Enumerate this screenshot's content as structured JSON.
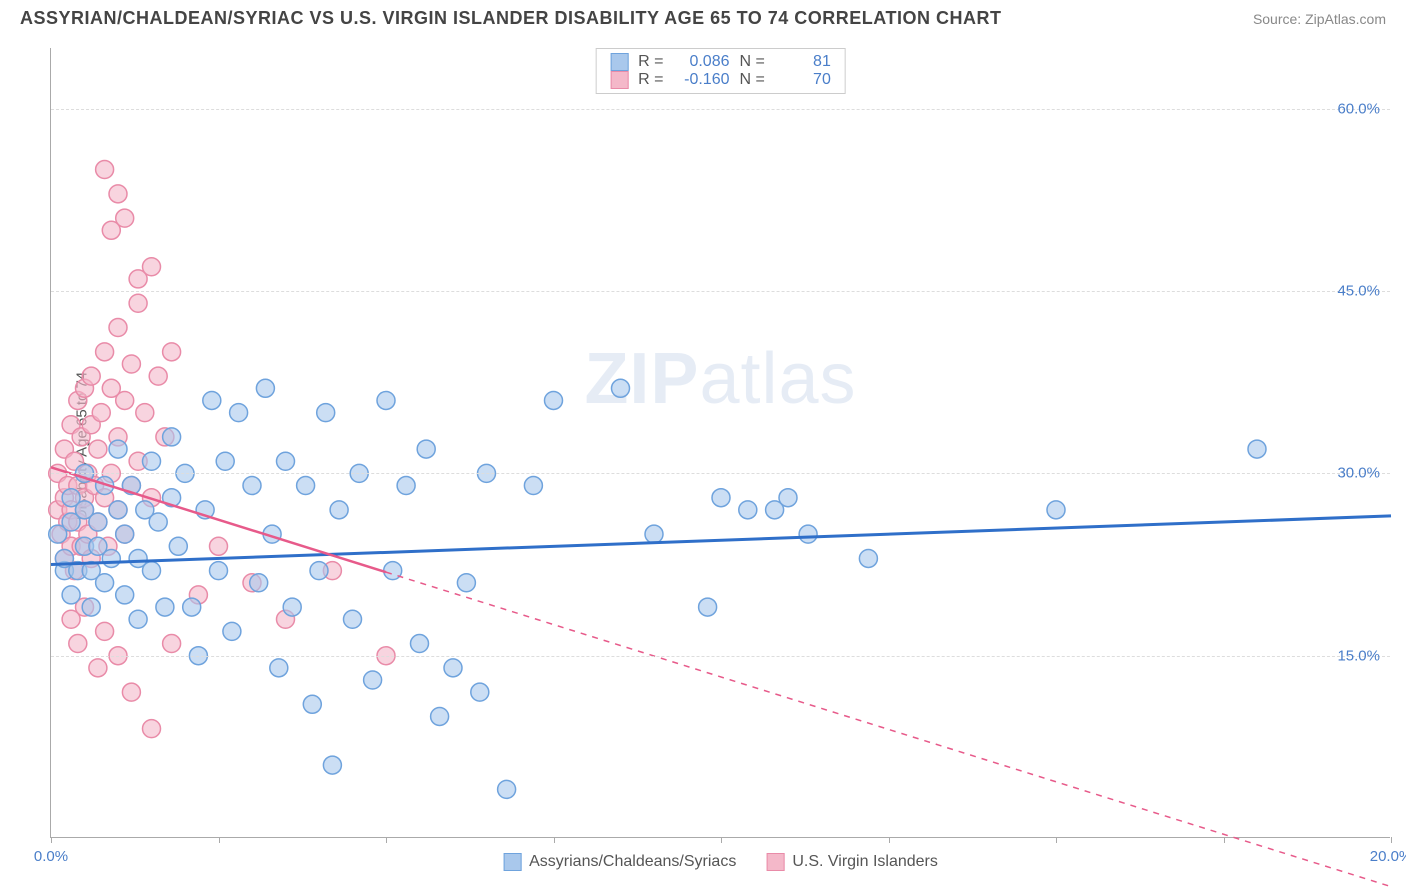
{
  "title": "ASSYRIAN/CHALDEAN/SYRIAC VS U.S. VIRGIN ISLANDER DISABILITY AGE 65 TO 74 CORRELATION CHART",
  "source": "Source: ZipAtlas.com",
  "ylabel": "Disability Age 65 to 74",
  "watermark": {
    "bold": "ZIP",
    "light": "atlas"
  },
  "chart": {
    "type": "scatter",
    "xlim": [
      0,
      20
    ],
    "ylim": [
      0,
      65
    ],
    "xticks": [
      0,
      2.5,
      5,
      7.5,
      10,
      12.5,
      15,
      17.5,
      20
    ],
    "xtick_labels": {
      "0": "0.0%",
      "20": "20.0%"
    },
    "yticks": [
      15,
      30,
      45,
      60
    ],
    "ytick_format": "%.1f%%",
    "grid_color": "#dddddd",
    "axis_color": "#aaaaaa",
    "background_color": "#ffffff",
    "series": [
      {
        "name": "Assyrians/Chaldeans/Syriacs",
        "color_fill": "#a9c8ec",
        "color_stroke": "#6fa3dd",
        "marker_radius": 9,
        "fill_opacity": 0.6,
        "R": "0.086",
        "N": "81",
        "trend": {
          "y_at_x0": 22.5,
          "y_at_x20": 26.5,
          "color": "#2f6fc9",
          "width": 3,
          "solid_until_x": 20
        },
        "points": [
          [
            0.1,
            25
          ],
          [
            0.2,
            22
          ],
          [
            0.2,
            23
          ],
          [
            0.3,
            26
          ],
          [
            0.3,
            20
          ],
          [
            0.3,
            28
          ],
          [
            0.4,
            22
          ],
          [
            0.5,
            24
          ],
          [
            0.5,
            27
          ],
          [
            0.5,
            30
          ],
          [
            0.6,
            19
          ],
          [
            0.6,
            22
          ],
          [
            0.7,
            26
          ],
          [
            0.7,
            24
          ],
          [
            0.8,
            29
          ],
          [
            0.8,
            21
          ],
          [
            0.9,
            23
          ],
          [
            1.0,
            27
          ],
          [
            1.0,
            32
          ],
          [
            1.1,
            20
          ],
          [
            1.1,
            25
          ],
          [
            1.2,
            29
          ],
          [
            1.3,
            18
          ],
          [
            1.3,
            23
          ],
          [
            1.4,
            27
          ],
          [
            1.5,
            31
          ],
          [
            1.5,
            22
          ],
          [
            1.6,
            26
          ],
          [
            1.7,
            19
          ],
          [
            1.8,
            33
          ],
          [
            1.8,
            28
          ],
          [
            1.9,
            24
          ],
          [
            2.0,
            30
          ],
          [
            2.1,
            19
          ],
          [
            2.2,
            15
          ],
          [
            2.3,
            27
          ],
          [
            2.4,
            36
          ],
          [
            2.5,
            22
          ],
          [
            2.6,
            31
          ],
          [
            2.7,
            17
          ],
          [
            2.8,
            35
          ],
          [
            3.0,
            29
          ],
          [
            3.1,
            21
          ],
          [
            3.2,
            37
          ],
          [
            3.3,
            25
          ],
          [
            3.4,
            14
          ],
          [
            3.5,
            31
          ],
          [
            3.6,
            19
          ],
          [
            3.8,
            29
          ],
          [
            3.9,
            11
          ],
          [
            4.0,
            22
          ],
          [
            4.1,
            35
          ],
          [
            4.3,
            27
          ],
          [
            4.5,
            18
          ],
          [
            4.6,
            30
          ],
          [
            4.8,
            13
          ],
          [
            5.0,
            36
          ],
          [
            5.1,
            22
          ],
          [
            5.3,
            29
          ],
          [
            5.5,
            16
          ],
          [
            5.6,
            32
          ],
          [
            5.8,
            10
          ],
          [
            6.0,
            14
          ],
          [
            6.2,
            21
          ],
          [
            6.4,
            12
          ],
          [
            6.5,
            30
          ],
          [
            6.8,
            4
          ],
          [
            7.2,
            29
          ],
          [
            7.5,
            36
          ],
          [
            8.5,
            37
          ],
          [
            9.0,
            25
          ],
          [
            9.8,
            19
          ],
          [
            10.0,
            28
          ],
          [
            10.4,
            27
          ],
          [
            10.8,
            27
          ],
          [
            11.0,
            28
          ],
          [
            11.3,
            25
          ],
          [
            12.2,
            23
          ],
          [
            15.0,
            27
          ],
          [
            18.0,
            32
          ],
          [
            4.2,
            6
          ]
        ]
      },
      {
        "name": "U.S. Virgin Islanders",
        "color_fill": "#f4b8c9",
        "color_stroke": "#e98ba8",
        "marker_radius": 9,
        "fill_opacity": 0.6,
        "R": "-0.160",
        "N": "70",
        "trend": {
          "y_at_x0": 30.5,
          "y_at_x20": -4.0,
          "color": "#e75a8a",
          "width": 2.5,
          "solid_until_x": 5
        },
        "points": [
          [
            0.1,
            27
          ],
          [
            0.1,
            30
          ],
          [
            0.15,
            25
          ],
          [
            0.2,
            28
          ],
          [
            0.2,
            32
          ],
          [
            0.2,
            23
          ],
          [
            0.25,
            26
          ],
          [
            0.25,
            29
          ],
          [
            0.3,
            34
          ],
          [
            0.3,
            24
          ],
          [
            0.3,
            27
          ],
          [
            0.35,
            31
          ],
          [
            0.35,
            22
          ],
          [
            0.4,
            36
          ],
          [
            0.4,
            26
          ],
          [
            0.4,
            29
          ],
          [
            0.45,
            24
          ],
          [
            0.45,
            33
          ],
          [
            0.5,
            28
          ],
          [
            0.5,
            27
          ],
          [
            0.5,
            37
          ],
          [
            0.55,
            25
          ],
          [
            0.55,
            30
          ],
          [
            0.6,
            34
          ],
          [
            0.6,
            23
          ],
          [
            0.6,
            38
          ],
          [
            0.65,
            29
          ],
          [
            0.7,
            32
          ],
          [
            0.7,
            26
          ],
          [
            0.75,
            35
          ],
          [
            0.8,
            28
          ],
          [
            0.8,
            40
          ],
          [
            0.85,
            24
          ],
          [
            0.9,
            37
          ],
          [
            0.9,
            30
          ],
          [
            1.0,
            42
          ],
          [
            1.0,
            27
          ],
          [
            1.0,
            33
          ],
          [
            1.1,
            36
          ],
          [
            1.1,
            25
          ],
          [
            1.2,
            39
          ],
          [
            1.2,
            29
          ],
          [
            1.3,
            44
          ],
          [
            1.3,
            31
          ],
          [
            1.4,
            35
          ],
          [
            1.5,
            47
          ],
          [
            1.5,
            28
          ],
          [
            1.6,
            38
          ],
          [
            1.7,
            33
          ],
          [
            1.8,
            40
          ],
          [
            0.3,
            18
          ],
          [
            0.4,
            16
          ],
          [
            0.5,
            19
          ],
          [
            0.7,
            14
          ],
          [
            0.8,
            17
          ],
          [
            1.0,
            15
          ],
          [
            1.2,
            12
          ],
          [
            1.5,
            9
          ],
          [
            1.8,
            16
          ],
          [
            2.2,
            20
          ],
          [
            0.9,
            50
          ],
          [
            1.0,
            53
          ],
          [
            0.8,
            55
          ],
          [
            1.1,
            51
          ],
          [
            1.3,
            46
          ],
          [
            2.5,
            24
          ],
          [
            3.0,
            21
          ],
          [
            3.5,
            18
          ],
          [
            4.2,
            22
          ],
          [
            5.0,
            15
          ]
        ]
      }
    ]
  },
  "stats_labels": {
    "R": "R  =",
    "N": "N  ="
  },
  "colors": {
    "blue_fill": "#a9c8ec",
    "blue_stroke": "#6fa3dd",
    "pink_fill": "#f4b8c9",
    "pink_stroke": "#e98ba8",
    "tick_text": "#4a7ec9"
  }
}
